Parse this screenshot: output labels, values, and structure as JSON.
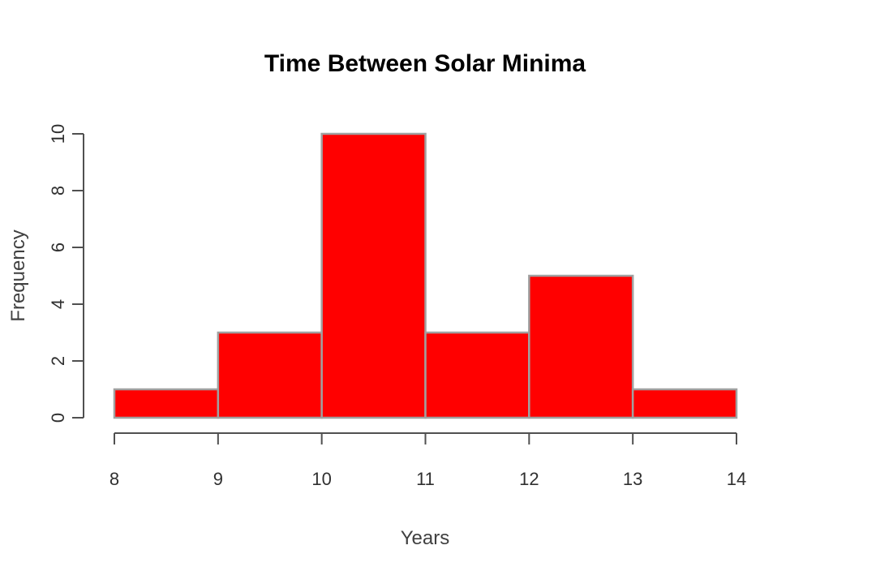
{
  "chart_data": {
    "type": "bar",
    "title": "Time Between Solar Minima",
    "xlabel": "Years",
    "ylabel": "Frequency",
    "bins": [
      {
        "start": 8,
        "end": 9,
        "value": 1
      },
      {
        "start": 9,
        "end": 10,
        "value": 3
      },
      {
        "start": 10,
        "end": 11,
        "value": 10
      },
      {
        "start": 11,
        "end": 12,
        "value": 3
      },
      {
        "start": 12,
        "end": 13,
        "value": 5
      },
      {
        "start": 13,
        "end": 14,
        "value": 1
      }
    ],
    "xlim": [
      8,
      14
    ],
    "ylim": [
      0,
      10
    ],
    "x_ticks": [
      "8",
      "9",
      "10",
      "11",
      "12",
      "13",
      "14"
    ],
    "y_ticks": [
      "0",
      "2",
      "4",
      "6",
      "8",
      "10"
    ],
    "bar_color": "#ff0000",
    "grid": false
  }
}
